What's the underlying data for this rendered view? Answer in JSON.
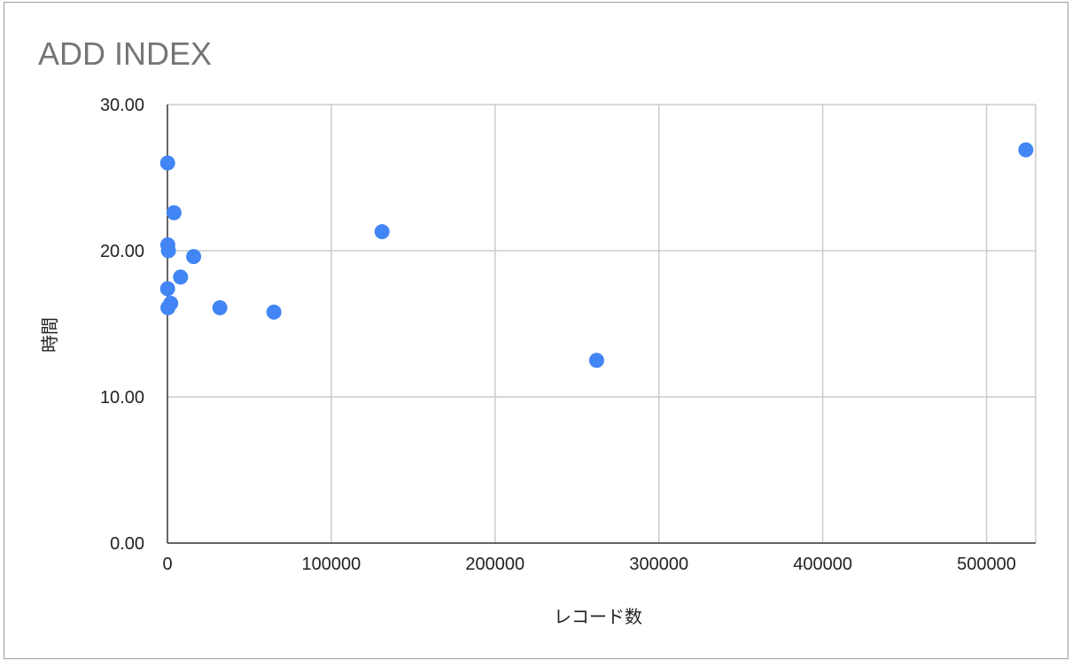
{
  "chart_data": {
    "type": "scatter",
    "title": "ADD INDEX",
    "xlabel": "レコード数",
    "ylabel": "時間",
    "xlim": [
      0,
      530000
    ],
    "ylim": [
      0,
      30
    ],
    "x_ticks": [
      0,
      100000,
      200000,
      300000,
      400000,
      500000
    ],
    "x_tick_labels": [
      "0",
      "100000",
      "200000",
      "300000",
      "400000",
      "500000"
    ],
    "y_ticks": [
      0,
      10,
      20,
      30
    ],
    "y_tick_labels": [
      "0.00",
      "10.00",
      "20.00",
      "30.00"
    ],
    "grid": true,
    "legend": "none",
    "colors": {
      "point": "#4285f4",
      "grid": "#cccccc",
      "axis": "#333333",
      "title": "#757575"
    },
    "series": [
      {
        "points": [
          {
            "x": 100,
            "y": 26.0
          },
          {
            "x": 4000,
            "y": 22.6
          },
          {
            "x": 200,
            "y": 20.4
          },
          {
            "x": 600,
            "y": 20.0
          },
          {
            "x": 16000,
            "y": 19.6
          },
          {
            "x": 8000,
            "y": 18.2
          },
          {
            "x": 100,
            "y": 17.4
          },
          {
            "x": 2000,
            "y": 16.4
          },
          {
            "x": 300,
            "y": 16.1
          },
          {
            "x": 32000,
            "y": 16.1
          },
          {
            "x": 65000,
            "y": 15.8
          },
          {
            "x": 131000,
            "y": 21.3
          },
          {
            "x": 262000,
            "y": 12.5
          },
          {
            "x": 524000,
            "y": 26.9
          }
        ]
      }
    ]
  }
}
